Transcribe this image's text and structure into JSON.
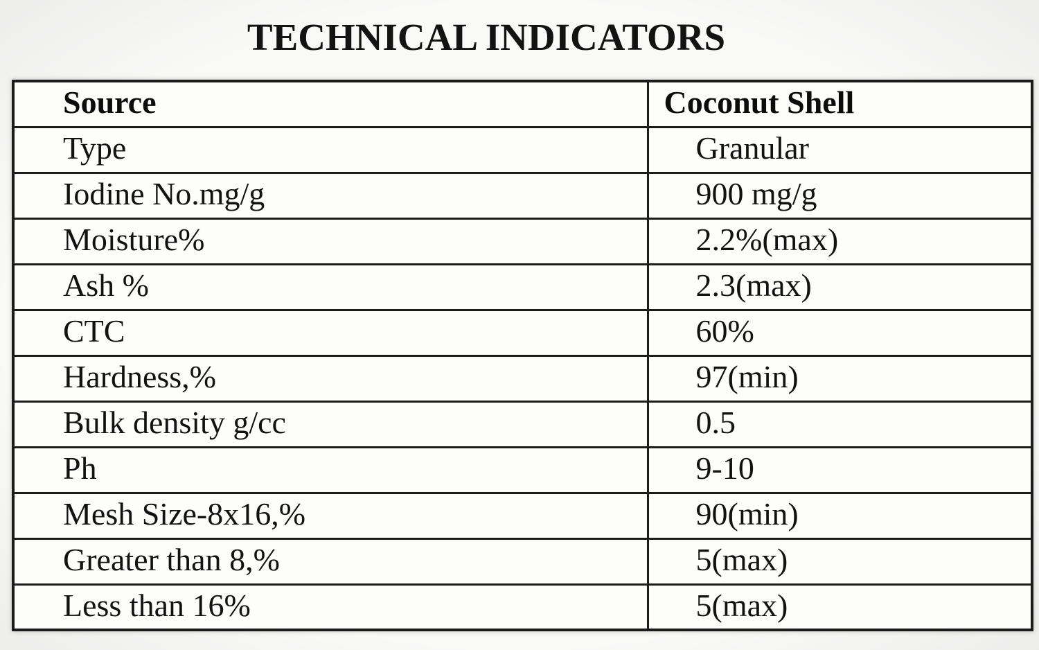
{
  "title": "TECHNICAL INDICATORS",
  "table": {
    "columns": {
      "source": "Source",
      "value": "Coconut Shell"
    },
    "rows": [
      {
        "label": "Type",
        "value": "Granular"
      },
      {
        "label": "Iodine No.mg/g",
        "value": "900 mg/g"
      },
      {
        "label": "Moisture%",
        "value": "2.2%(max)"
      },
      {
        "label": "Ash %",
        "value": "2.3(max)"
      },
      {
        "label": "CTC",
        "value": "60%"
      },
      {
        "label": "Hardness,%",
        "value": "97(min)"
      },
      {
        "label": "Bulk density g/cc",
        "value": "0.5"
      },
      {
        "label": "Ph",
        "value": "9-10"
      },
      {
        "label": "Mesh Size-8x16,%",
        "value": "90(min)"
      },
      {
        "label": "Greater than 8,%",
        "value": "5(max)"
      },
      {
        "label": "Less than 16%",
        "value": "5(max)"
      }
    ]
  },
  "colors": {
    "border": "#1b1b1b",
    "page_background": "#f9f9f8",
    "cell_background": "#fdfdfc",
    "text": "#121212"
  }
}
